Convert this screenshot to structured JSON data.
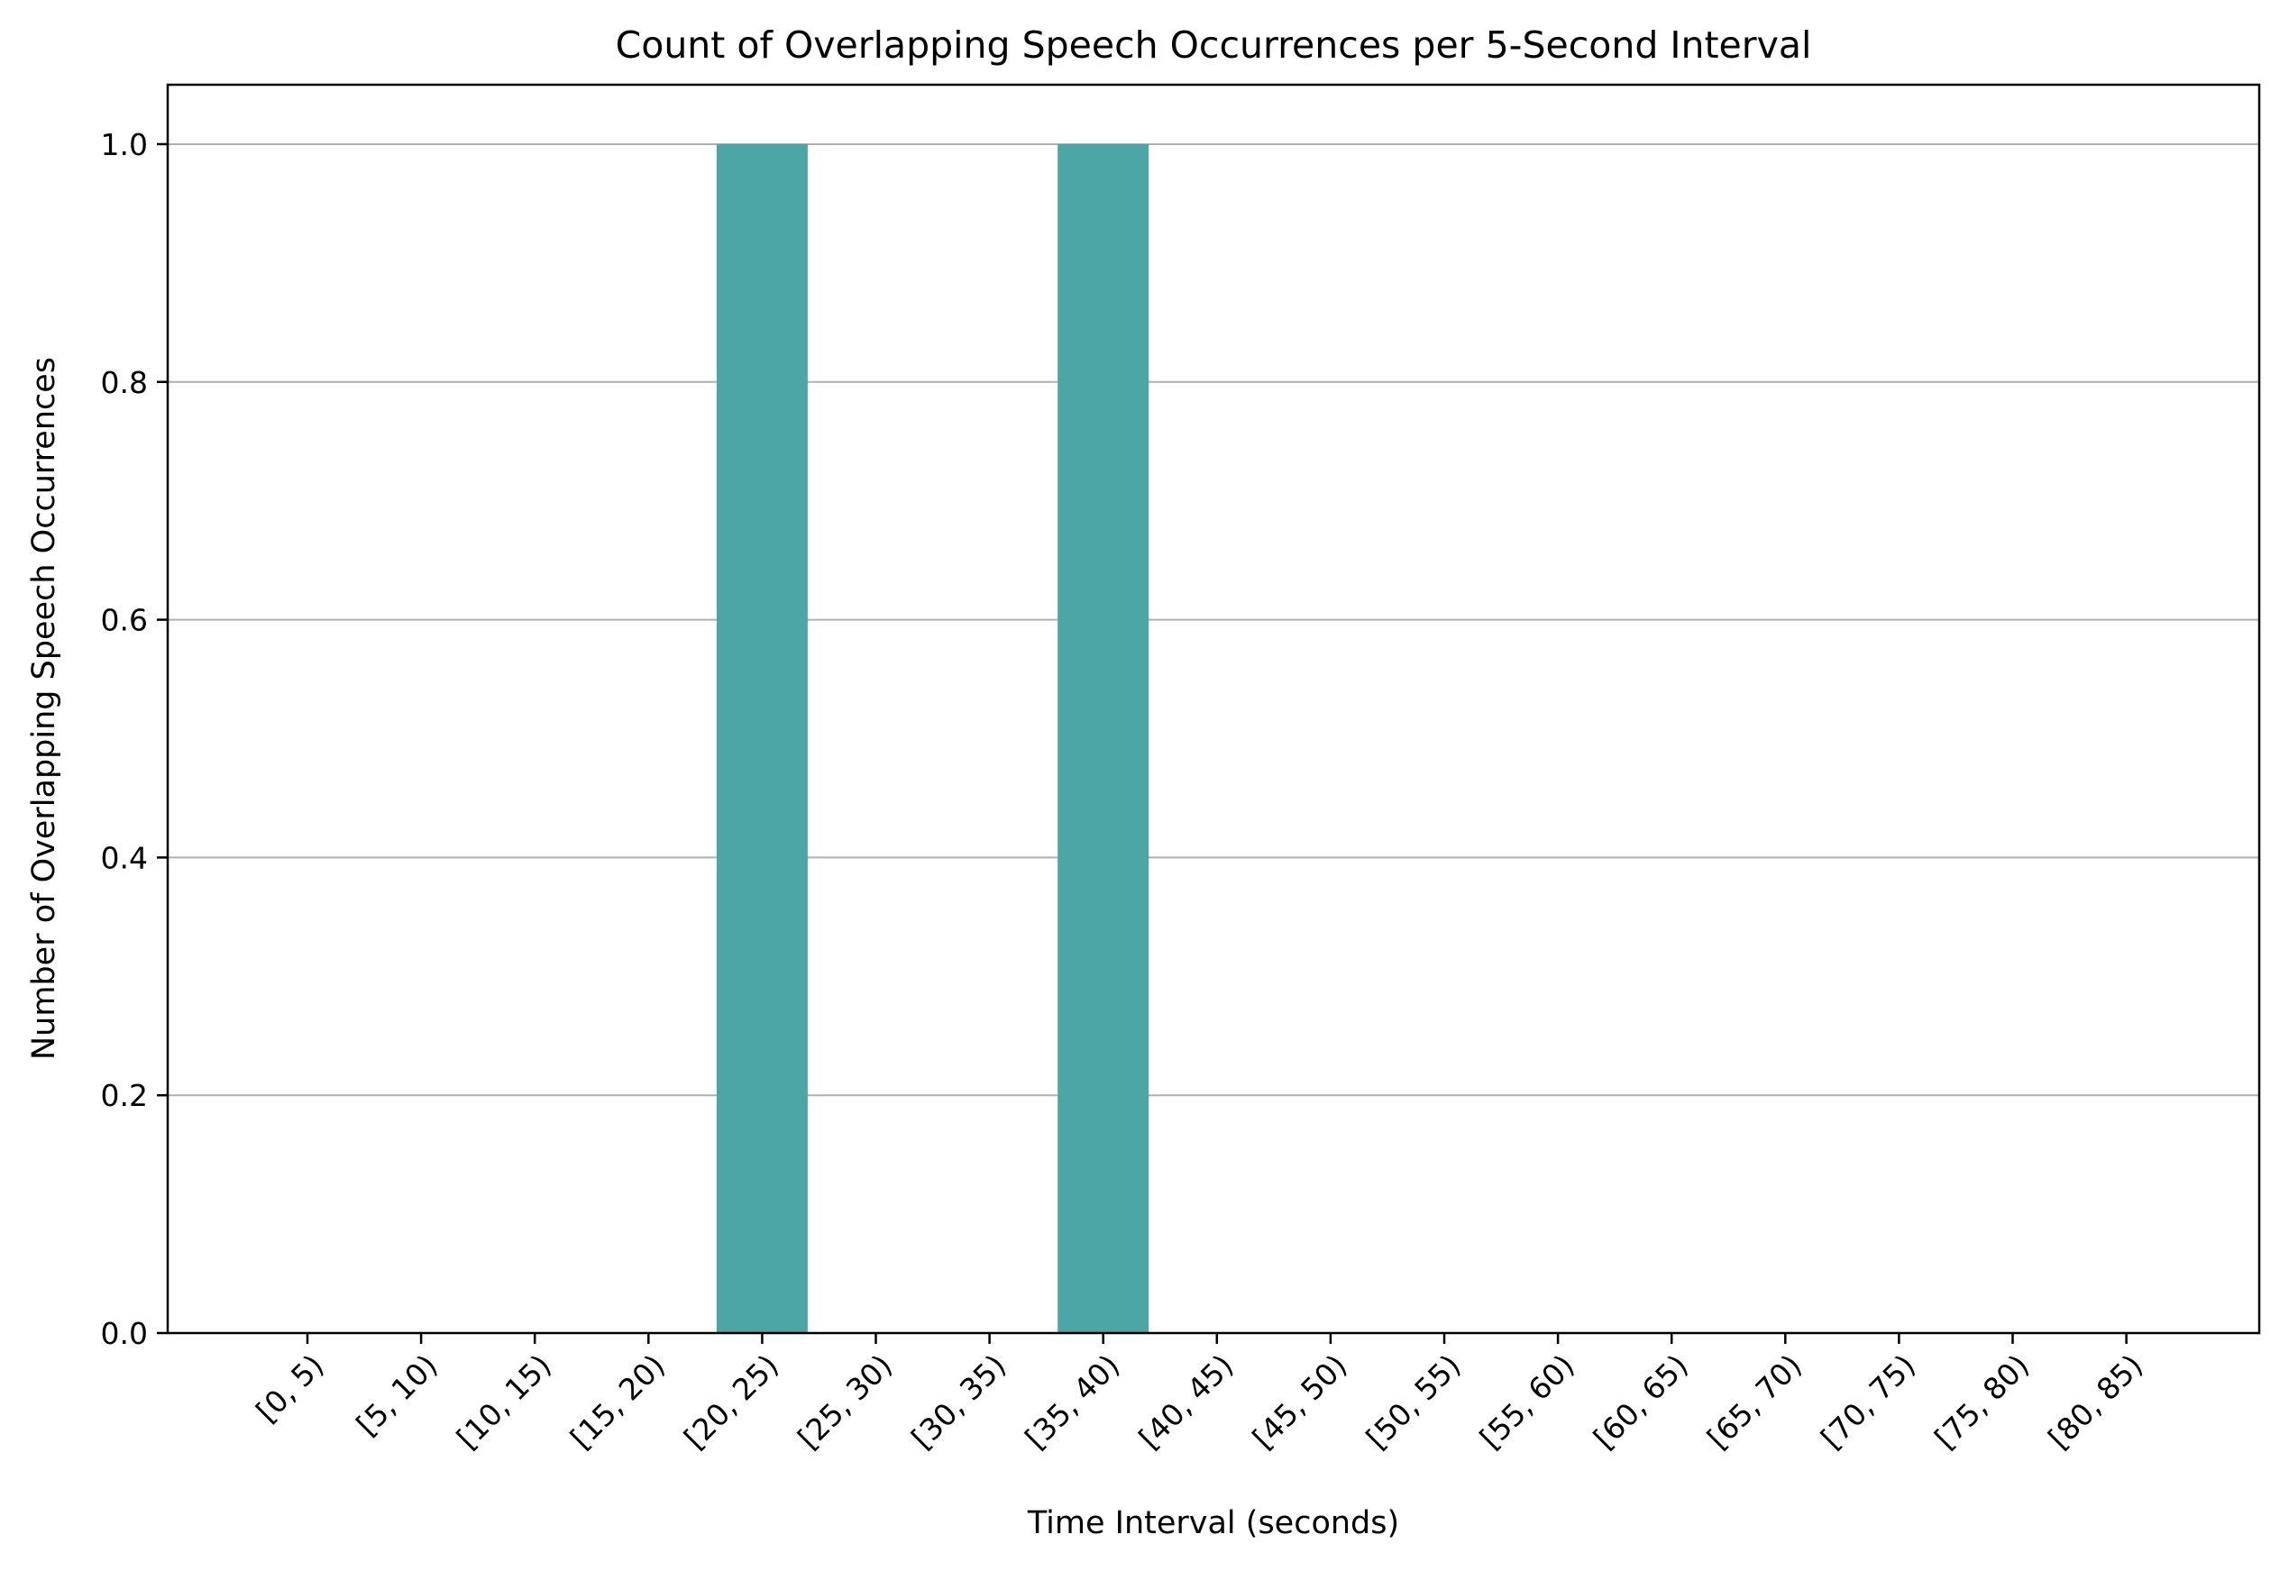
{
  "chart_data": {
    "type": "bar",
    "title": "Count of Overlapping Speech Occurrences per 5-Second Interval",
    "xlabel": "Time Interval (seconds)",
    "ylabel": "Number of Overlapping Speech Occurrences",
    "categories": [
      "[0, 5)",
      "[5, 10)",
      "[10, 15)",
      "[15, 20)",
      "[20, 25)",
      "[25, 30)",
      "[30, 35)",
      "[35, 40)",
      "[40, 45)",
      "[45, 50)",
      "[50, 55)",
      "[55, 60)",
      "[60, 65)",
      "[65, 70)",
      "[70, 75)",
      "[75, 80)",
      "[80, 85)"
    ],
    "values": [
      0,
      0,
      0,
      0,
      1,
      0,
      0,
      1,
      0,
      0,
      0,
      0,
      0,
      0,
      0,
      0,
      0
    ],
    "ylim": [
      0,
      1.05
    ],
    "yticks": [
      "0.0",
      "0.2",
      "0.4",
      "0.6",
      "0.8",
      "1.0"
    ],
    "grid": "y",
    "bar_color": "#4ca6a6",
    "grid_color": "#b0b0b0",
    "legend": "none"
  }
}
